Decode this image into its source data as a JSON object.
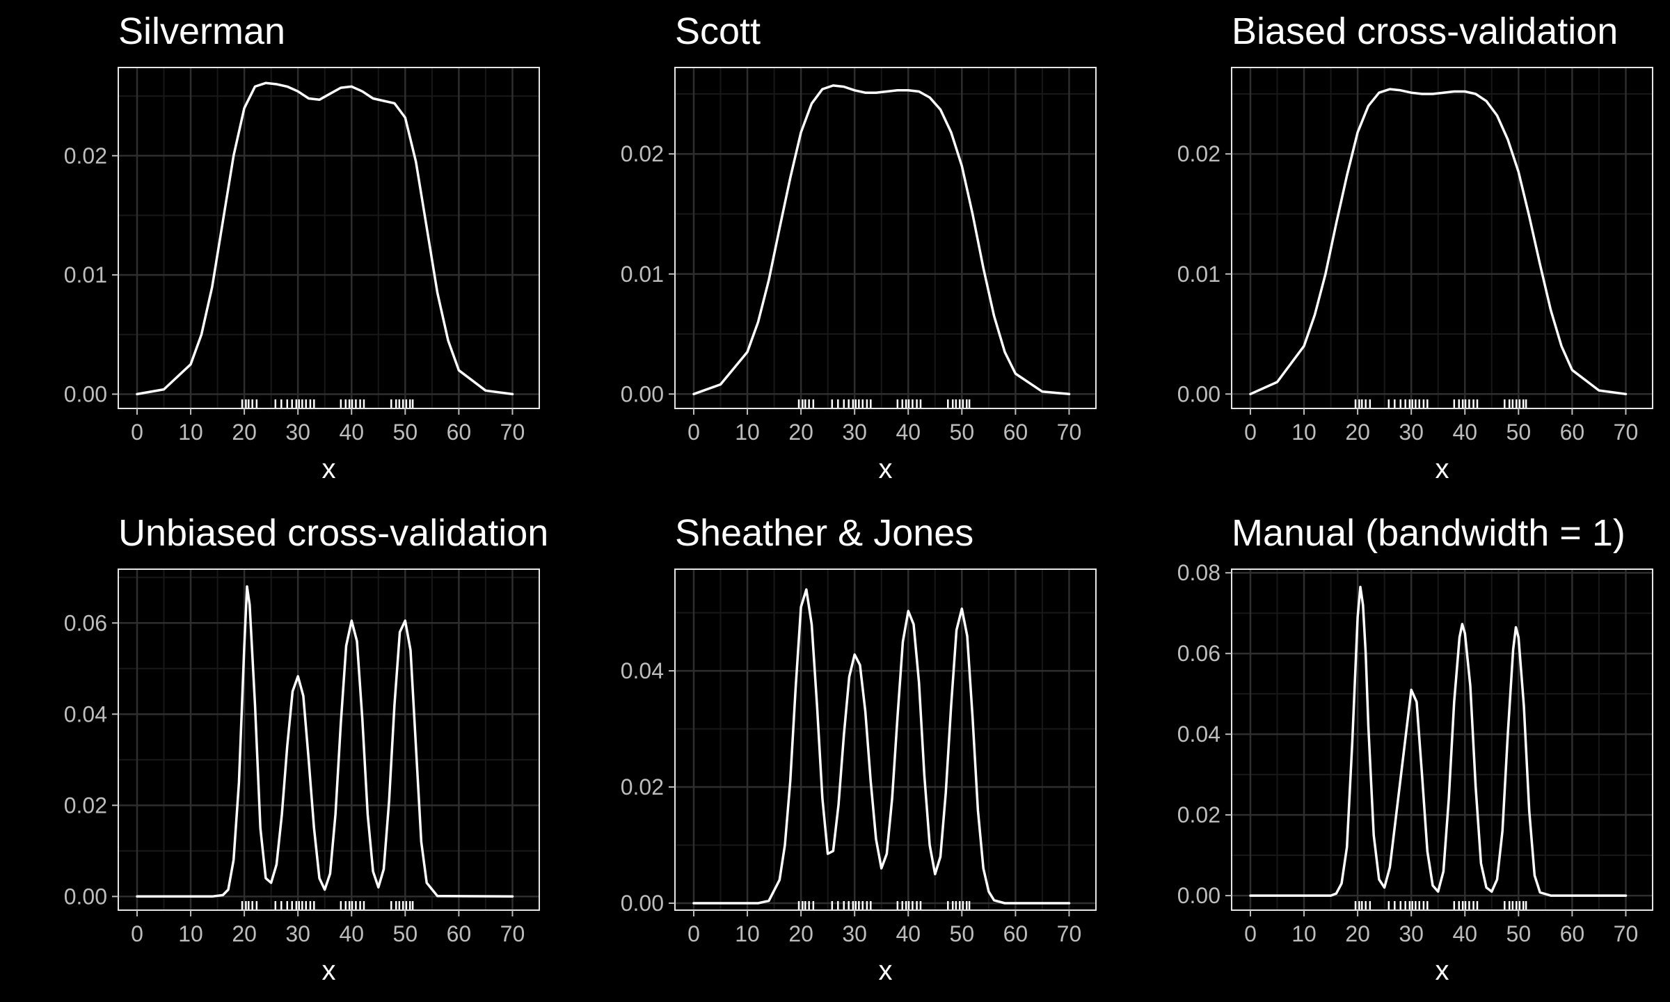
{
  "colors": {
    "background": "#000000",
    "panel_background": "#000000",
    "panel_border": "#e6e6e6",
    "grid_major": "#2e2e2e",
    "grid_minor": "#181818",
    "line": "#ffffff",
    "tick_label": "#bdbdbd",
    "text": "#ffffff"
  },
  "rug": [
    19.6,
    20.3,
    20.8,
    21.5,
    22.3,
    25.8,
    26.9,
    28.0,
    28.9,
    29.7,
    30.2,
    30.8,
    31.5,
    32.3,
    33.0,
    38.0,
    38.9,
    39.6,
    40.1,
    40.8,
    41.6,
    42.3,
    47.4,
    48.3,
    48.9,
    49.6,
    50.2,
    50.9,
    51.4
  ],
  "chart_data": [
    {
      "type": "line",
      "title": "Silverman",
      "xlabel": "x",
      "ylabel": "",
      "xlim": [
        -3.5,
        75
      ],
      "ylim": [
        -0.0012,
        0.0274
      ],
      "xticks": [
        0,
        10,
        20,
        30,
        40,
        50,
        60,
        70
      ],
      "yticks": [
        0.0,
        0.01,
        0.02
      ],
      "ytick_labels": [
        "0.00",
        "0.01",
        "0.02"
      ],
      "grid": true,
      "x": [
        0,
        5,
        10,
        12,
        14,
        16,
        18,
        20,
        22,
        24,
        26,
        28,
        30,
        32,
        34,
        36,
        38,
        40,
        42,
        44,
        46,
        48,
        50,
        52,
        54,
        56,
        58,
        60,
        65,
        70
      ],
      "y": [
        0.0,
        0.0004,
        0.0025,
        0.005,
        0.009,
        0.0145,
        0.02,
        0.024,
        0.0258,
        0.0261,
        0.026,
        0.0258,
        0.0254,
        0.0248,
        0.0247,
        0.0252,
        0.0257,
        0.0258,
        0.0254,
        0.0248,
        0.0246,
        0.0244,
        0.0232,
        0.0195,
        0.014,
        0.0085,
        0.0045,
        0.002,
        0.0003,
        0.0
      ]
    },
    {
      "type": "line",
      "title": "Scott",
      "xlabel": "x",
      "ylabel": "",
      "xlim": [
        -3.5,
        75
      ],
      "ylim": [
        -0.0012,
        0.0272
      ],
      "xticks": [
        0,
        10,
        20,
        30,
        40,
        50,
        60,
        70
      ],
      "yticks": [
        0.0,
        0.01,
        0.02
      ],
      "ytick_labels": [
        "0.00",
        "0.01",
        "0.02"
      ],
      "grid": true,
      "x": [
        0,
        5,
        10,
        12,
        14,
        16,
        18,
        20,
        22,
        24,
        26,
        28,
        30,
        32,
        34,
        36,
        38,
        40,
        42,
        44,
        46,
        48,
        50,
        52,
        54,
        56,
        58,
        60,
        65,
        70
      ],
      "y": [
        0.0,
        0.0008,
        0.0035,
        0.006,
        0.0095,
        0.0138,
        0.018,
        0.0218,
        0.0242,
        0.0254,
        0.0257,
        0.0256,
        0.0253,
        0.0251,
        0.0251,
        0.0252,
        0.0253,
        0.0253,
        0.0252,
        0.0247,
        0.0237,
        0.0218,
        0.019,
        0.015,
        0.0105,
        0.0065,
        0.0035,
        0.0017,
        0.0002,
        0.0
      ]
    },
    {
      "type": "line",
      "title": "Biased cross-validation",
      "xlabel": "x",
      "ylabel": "",
      "xlim": [
        -3.5,
        75
      ],
      "ylim": [
        -0.0012,
        0.0272
      ],
      "xticks": [
        0,
        10,
        20,
        30,
        40,
        50,
        60,
        70
      ],
      "yticks": [
        0.0,
        0.01,
        0.02
      ],
      "ytick_labels": [
        "0.00",
        "0.01",
        "0.02"
      ],
      "grid": true,
      "x": [
        0,
        5,
        10,
        12,
        14,
        16,
        18,
        20,
        22,
        24,
        26,
        28,
        30,
        32,
        34,
        36,
        38,
        40,
        42,
        44,
        46,
        48,
        50,
        52,
        54,
        56,
        58,
        60,
        65,
        70
      ],
      "y": [
        0.0,
        0.001,
        0.004,
        0.0066,
        0.01,
        0.0142,
        0.0182,
        0.0218,
        0.024,
        0.0251,
        0.0254,
        0.0253,
        0.0251,
        0.025,
        0.025,
        0.0251,
        0.0252,
        0.0252,
        0.025,
        0.0244,
        0.0232,
        0.0212,
        0.0185,
        0.0148,
        0.0108,
        0.007,
        0.004,
        0.002,
        0.0003,
        0.0
      ]
    },
    {
      "type": "line",
      "title": "Unbiased cross-validation",
      "xlabel": "x",
      "ylabel": "",
      "xlim": [
        -3.5,
        75
      ],
      "ylim": [
        -0.003,
        0.0718
      ],
      "xticks": [
        0,
        10,
        20,
        30,
        40,
        50,
        60,
        70
      ],
      "yticks": [
        0.0,
        0.02,
        0.04,
        0.06
      ],
      "ytick_labels": [
        "0.00",
        "0.02",
        "0.04",
        "0.06"
      ],
      "grid": true,
      "x": [
        0,
        14,
        16,
        17,
        18,
        19,
        20,
        20.5,
        21,
        22,
        23,
        24,
        25,
        26,
        27,
        28,
        29,
        30,
        31,
        32,
        33,
        34,
        35,
        36,
        37,
        38,
        39,
        40,
        41,
        42,
        43,
        44,
        45,
        46,
        47,
        48,
        49,
        50,
        51,
        52,
        53,
        54,
        56,
        70
      ],
      "y": [
        0.0,
        0.0,
        0.0003,
        0.0015,
        0.008,
        0.025,
        0.055,
        0.068,
        0.064,
        0.042,
        0.015,
        0.004,
        0.003,
        0.007,
        0.018,
        0.033,
        0.045,
        0.0483,
        0.044,
        0.03,
        0.015,
        0.004,
        0.0015,
        0.005,
        0.018,
        0.038,
        0.055,
        0.0605,
        0.056,
        0.039,
        0.018,
        0.0055,
        0.002,
        0.006,
        0.021,
        0.042,
        0.058,
        0.0605,
        0.054,
        0.033,
        0.012,
        0.003,
        0.0001,
        0.0
      ]
    },
    {
      "type": "line",
      "title": "Sheather & Jones",
      "xlabel": "x",
      "ylabel": "",
      "xlim": [
        -3.5,
        75
      ],
      "ylim": [
        -0.0012,
        0.0575
      ],
      "xticks": [
        0,
        10,
        20,
        30,
        40,
        50,
        60,
        70
      ],
      "yticks": [
        0.0,
        0.02,
        0.04
      ],
      "ytick_labels": [
        "0.00",
        "0.02",
        "0.04"
      ],
      "grid": true,
      "x": [
        0,
        12,
        14,
        16,
        17,
        18,
        19,
        20,
        21,
        22,
        23,
        24,
        25,
        26,
        27,
        28,
        29,
        30,
        31,
        32,
        33,
        34,
        35,
        36,
        37,
        38,
        39,
        40,
        41,
        42,
        43,
        44,
        45,
        46,
        47,
        48,
        49,
        50,
        51,
        52,
        53,
        54,
        55,
        56,
        58,
        70
      ],
      "y": [
        0.0,
        0.0,
        0.0004,
        0.004,
        0.01,
        0.021,
        0.037,
        0.051,
        0.054,
        0.048,
        0.034,
        0.018,
        0.0085,
        0.009,
        0.017,
        0.029,
        0.039,
        0.0428,
        0.041,
        0.033,
        0.021,
        0.011,
        0.006,
        0.0085,
        0.018,
        0.032,
        0.045,
        0.0503,
        0.048,
        0.038,
        0.022,
        0.01,
        0.005,
        0.008,
        0.019,
        0.034,
        0.047,
        0.0507,
        0.046,
        0.032,
        0.016,
        0.006,
        0.002,
        0.0005,
        0.0,
        0.0
      ]
    },
    {
      "type": "line",
      "title": "Manual (bandwidth = 1)",
      "xlabel": "x",
      "ylabel": "",
      "xlim": [
        -3.5,
        75
      ],
      "ylim": [
        -0.0036,
        0.0809
      ],
      "xticks": [
        0,
        10,
        20,
        30,
        40,
        50,
        60,
        70
      ],
      "yticks": [
        0.0,
        0.02,
        0.04,
        0.06,
        0.08
      ],
      "ytick_labels": [
        "0.00",
        "0.02",
        "0.04",
        "0.06",
        "0.08"
      ],
      "grid": true,
      "x": [
        0,
        15,
        16,
        17,
        18,
        19,
        20,
        20.5,
        21,
        21.5,
        22,
        23,
        24,
        25,
        26,
        27,
        28,
        29,
        30,
        31,
        32,
        33,
        34,
        35,
        36,
        37,
        38,
        39,
        39.5,
        40,
        41,
        42,
        43,
        44,
        45,
        46,
        47,
        48,
        49,
        49.5,
        50,
        51,
        52,
        53,
        54,
        56,
        70
      ],
      "y": [
        0.0,
        0.0,
        0.0005,
        0.003,
        0.012,
        0.038,
        0.069,
        0.0765,
        0.072,
        0.06,
        0.042,
        0.015,
        0.004,
        0.002,
        0.007,
        0.018,
        0.029,
        0.04,
        0.051,
        0.048,
        0.03,
        0.011,
        0.0025,
        0.001,
        0.006,
        0.024,
        0.048,
        0.064,
        0.0673,
        0.065,
        0.052,
        0.027,
        0.008,
        0.002,
        0.001,
        0.004,
        0.016,
        0.04,
        0.061,
        0.0665,
        0.064,
        0.047,
        0.021,
        0.005,
        0.0008,
        0.0,
        0.0
      ]
    }
  ]
}
